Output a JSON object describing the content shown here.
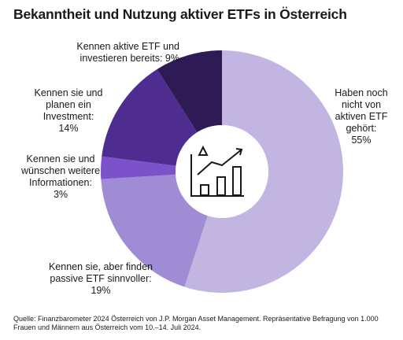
{
  "title": "Bekanntheit und Nutzung aktiver ETFs in Österreich",
  "chart_data": {
    "type": "pie",
    "style": "donut",
    "center_icon": "chart-icon",
    "slices": [
      {
        "label": "Haben noch nicht von aktiven ETF gehört:",
        "value": 55,
        "value_label": "55%",
        "color": "#c3b5e2"
      },
      {
        "label": "Kennen sie, aber finden passive ETF sinnvoller:",
        "value": 19,
        "value_label": "19%",
        "color": "#a08cd4"
      },
      {
        "label": "Kennen sie und wünschen weitere Informationen:",
        "value": 3,
        "value_label": "3%",
        "color": "#7b52c9"
      },
      {
        "label": "Kennen sie und planen ein Investment:",
        "value": 14,
        "value_label": "14%",
        "color": "#4f2d90"
      },
      {
        "label": "Kennen aktive ETF und investieren bereits:",
        "value": 9,
        "value_label": "9%",
        "color": "#2e1b55"
      }
    ]
  },
  "labels": {
    "s0": "Haben noch\nnicht von\naktiven ETF\ngehört:\n55%",
    "s1": "Kennen sie, aber finden\npassive ETF sinnvoller:\n19%",
    "s2": "Kennen sie und\nwünschen weitere\nInformationen:\n3%",
    "s3": "Kennen sie und\nplanen ein\nInvestment:\n14%",
    "s4": "Kennen aktive ETF und\ninvestieren bereits: 9%"
  },
  "source": "Quelle: Finanzbarometer 2024 Österreich von J.P. Morgan Asset Management. Repräsentative Befragung von 1.000 Frauen und Männern aus Österreich vom 10.–14. Juli 2024."
}
